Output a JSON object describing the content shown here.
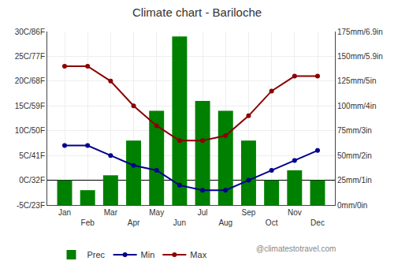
{
  "chart_data": {
    "type": "bar",
    "title": "Climate chart - Bariloche",
    "categories": [
      "Jan",
      "Feb",
      "Mar",
      "Apr",
      "May",
      "Jun",
      "Jul",
      "Aug",
      "Sep",
      "Oct",
      "Nov",
      "Dec"
    ],
    "series": [
      {
        "name": "Prec",
        "type": "bar",
        "axis": "y2",
        "color": "#008000",
        "values": [
          25,
          15,
          30,
          65,
          95,
          170,
          105,
          95,
          65,
          25,
          35,
          25
        ]
      },
      {
        "name": "Min",
        "type": "line",
        "color": "#00008B",
        "marker": "circle",
        "line_style": "solid",
        "values": [
          7,
          7,
          5,
          3,
          2,
          -1,
          -2,
          -2,
          0,
          2,
          4,
          6
        ]
      },
      {
        "name": "Max",
        "type": "line",
        "color": "#8B0000",
        "marker": "circle",
        "line_style": "solid",
        "values": [
          23,
          23,
          20,
          15,
          11,
          8,
          8,
          9,
          13,
          18,
          21,
          21
        ]
      }
    ],
    "ylim": [
      -5,
      30
    ],
    "yticks": [
      {
        "value": -5,
        "label": "-5C/23F"
      },
      {
        "value": 0,
        "label": "0C/32F"
      },
      {
        "value": 5,
        "label": "5C/41F"
      },
      {
        "value": 10,
        "label": "10C/50F"
      },
      {
        "value": 15,
        "label": "15C/59F"
      },
      {
        "value": 20,
        "label": "20C/68F"
      },
      {
        "value": 25,
        "label": "25C/77F"
      },
      {
        "value": 30,
        "label": "30C/86F"
      }
    ],
    "y2lim": [
      0,
      175
    ],
    "y2ticks": [
      {
        "value": 0,
        "label": "0mm/0in"
      },
      {
        "value": 25,
        "label": "25mm/1in"
      },
      {
        "value": 50,
        "label": "50mm/2in"
      },
      {
        "value": 75,
        "label": "75mm/3in"
      },
      {
        "value": 100,
        "label": "100mm/4in"
      },
      {
        "value": 125,
        "label": "125mm/5in"
      },
      {
        "value": 150,
        "label": "150mm/5.9in"
      },
      {
        "value": 175,
        "label": "175mm/6.9in"
      }
    ],
    "grid": true,
    "legend": "bottom",
    "annotations": [
      "@climatestotravel.com"
    ]
  }
}
